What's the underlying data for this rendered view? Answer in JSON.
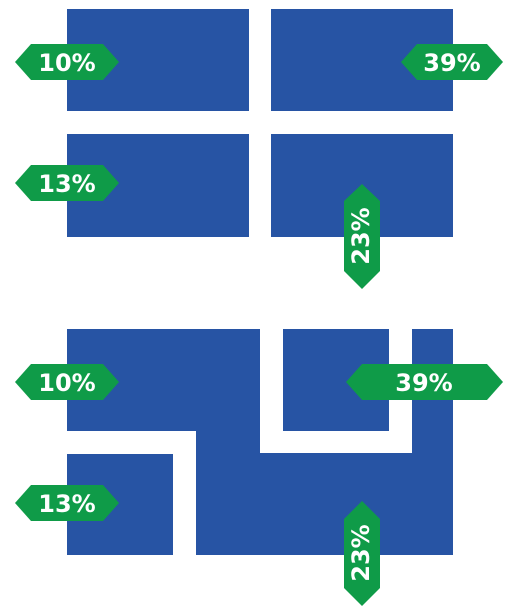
{
  "colors": {
    "background": "#ffffff",
    "block": "#2754a4",
    "tag": "#0f9b48",
    "tag_text": "#ffffff"
  },
  "top_diagram": {
    "labels": {
      "top_left": "10%",
      "top_right": "39%",
      "bottom_left": "13%",
      "bottom_right": "23%"
    }
  },
  "bottom_diagram": {
    "labels": {
      "top_left": "10%",
      "top_right": "39%",
      "bottom_left": "13%",
      "bottom_right": "23%"
    }
  }
}
